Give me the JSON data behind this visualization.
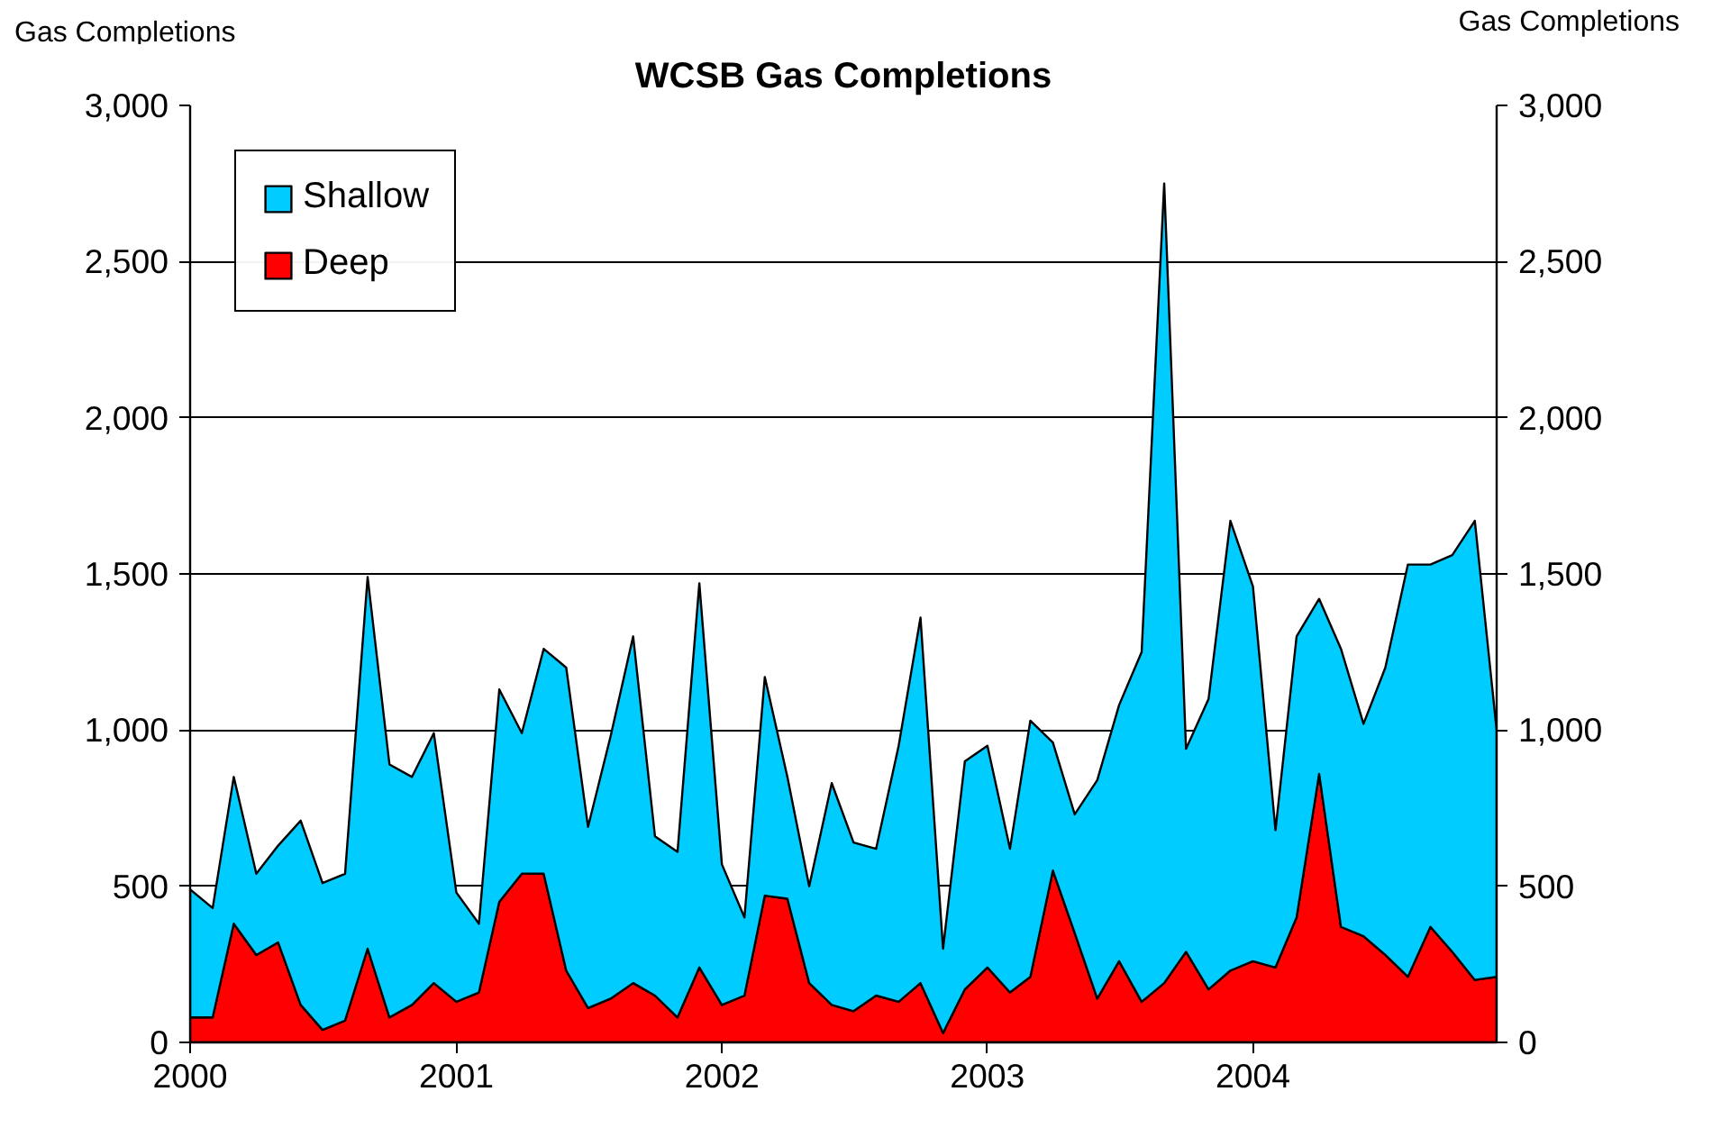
{
  "chart_data": {
    "type": "area",
    "stacked": true,
    "title": "WCSB Gas Completions",
    "ylabel": "Gas Completions",
    "y2label": "Gas Completions",
    "x": [
      "2000-01",
      "2000-02",
      "2000-03",
      "2000-04",
      "2000-05",
      "2000-06",
      "2000-07",
      "2000-08",
      "2000-09",
      "2000-10",
      "2000-11",
      "2000-12",
      "2001-01",
      "2001-02",
      "2001-03",
      "2001-04",
      "2001-05",
      "2001-06",
      "2001-07",
      "2001-08",
      "2001-09",
      "2001-10",
      "2001-11",
      "2001-12",
      "2002-01",
      "2002-02",
      "2002-03",
      "2002-04",
      "2002-05",
      "2002-06",
      "2002-07",
      "2002-08",
      "2002-09",
      "2002-10",
      "2002-11",
      "2002-12",
      "2003-01",
      "2003-02",
      "2003-03",
      "2003-04",
      "2003-05",
      "2003-06",
      "2003-07",
      "2003-08",
      "2003-09",
      "2003-10",
      "2003-11",
      "2003-12",
      "2004-01",
      "2004-02",
      "2004-03",
      "2004-04",
      "2004-05",
      "2004-06",
      "2004-07",
      "2004-08",
      "2004-09",
      "2004-10",
      "2004-11",
      "2004-12"
    ],
    "series": [
      {
        "name": "Deep",
        "color": "#ff0000",
        "values": [
          80,
          80,
          380,
          280,
          320,
          120,
          40,
          70,
          300,
          80,
          120,
          190,
          130,
          160,
          450,
          540,
          540,
          230,
          110,
          140,
          190,
          150,
          80,
          240,
          120,
          150,
          470,
          460,
          190,
          120,
          100,
          150,
          130,
          190,
          30,
          170,
          240,
          160,
          210,
          550,
          350,
          140,
          260,
          130,
          190,
          290,
          170,
          230,
          260,
          240,
          400,
          860,
          370,
          340,
          280,
          210,
          370,
          290,
          200,
          210
        ]
      },
      {
        "name": "Shallow",
        "color": "#00ccff",
        "values": [
          410,
          350,
          470,
          260,
          310,
          590,
          470,
          470,
          1190,
          810,
          730,
          800,
          350,
          220,
          680,
          450,
          720,
          970,
          580,
          840,
          1110,
          510,
          530,
          1230,
          450,
          250,
          700,
          390,
          310,
          710,
          540,
          470,
          820,
          1170,
          270,
          730,
          710,
          460,
          820,
          410,
          380,
          700,
          820,
          1120,
          2560,
          650,
          930,
          1440,
          1200,
          440,
          900,
          560,
          890,
          680,
          920,
          1320,
          1160,
          1270,
          1470,
          790
        ]
      }
    ],
    "xlim": [
      "2000-01",
      "2004-12"
    ],
    "xticks": [
      {
        "value": "2000-01",
        "label": "2000"
      },
      {
        "value": "2001-01",
        "label": "2001"
      },
      {
        "value": "2002-01",
        "label": "2002"
      },
      {
        "value": "2003-01",
        "label": "2003"
      },
      {
        "value": "2004-01",
        "label": "2004"
      }
    ],
    "ylim": [
      0,
      3000
    ],
    "yticks": [
      0,
      500,
      {
        "value": 1000,
        "label": "1,000"
      },
      {
        "value": 1500,
        "label": "1,500"
      },
      {
        "value": 2000,
        "label": "2,000"
      },
      {
        "value": 2500,
        "label": "2,500"
      },
      {
        "value": 3000,
        "label": "3,000"
      }
    ],
    "y2lim": [
      0,
      3000
    ],
    "y2ticks": [
      0,
      500,
      {
        "value": 1000,
        "label": "1,000"
      },
      {
        "value": 1500,
        "label": "1,500"
      },
      {
        "value": 2000,
        "label": "2,000"
      },
      {
        "value": 2500,
        "label": "2,500"
      },
      {
        "value": 3000,
        "label": "3,000"
      }
    ],
    "grid": "y",
    "legend": "top left"
  }
}
